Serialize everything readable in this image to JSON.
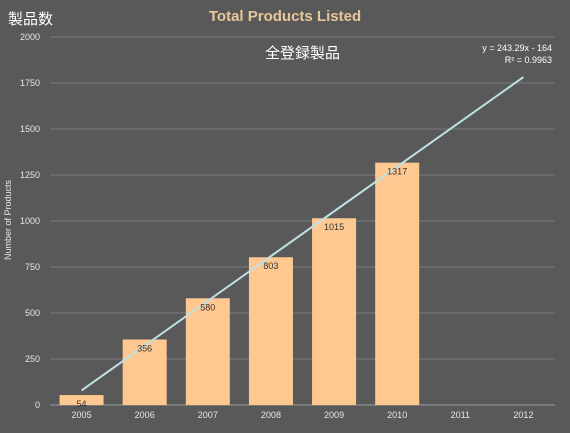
{
  "corner_label": "製品数",
  "annotation_label": "全登録製品",
  "trend_equation": "y = 243.29x - 164",
  "trend_r2": "R² = 0.9963",
  "colors": {
    "background": "#595959",
    "bar": "#ffc890",
    "trendline": "#bfe1e8",
    "grid": "#7a7a7a",
    "axis_text": "#e6e6e6",
    "title": "#e8c79a"
  },
  "chart_data": {
    "type": "bar",
    "title": "Total Products Listed",
    "ylabel": "Number of Products",
    "xlabel": "",
    "categories": [
      "2005",
      "2006",
      "2007",
      "2008",
      "2009",
      "2010",
      "2011",
      "2012"
    ],
    "series": [
      {
        "values": [
          54,
          356,
          580,
          803,
          1015,
          1317,
          null,
          null
        ]
      }
    ],
    "data_labels": [
      "54",
      "356",
      "580",
      "803",
      "1015",
      "1317",
      "",
      ""
    ],
    "yticks": [
      "0",
      "250",
      "500",
      "750",
      "1000",
      "1250",
      "1500",
      "1750",
      "2000"
    ],
    "ylim": [
      0,
      2000
    ],
    "grid": true,
    "trendline": {
      "type": "linear",
      "slope": 243.29,
      "intercept": -164,
      "x_start": 1,
      "x_end": 8
    }
  }
}
